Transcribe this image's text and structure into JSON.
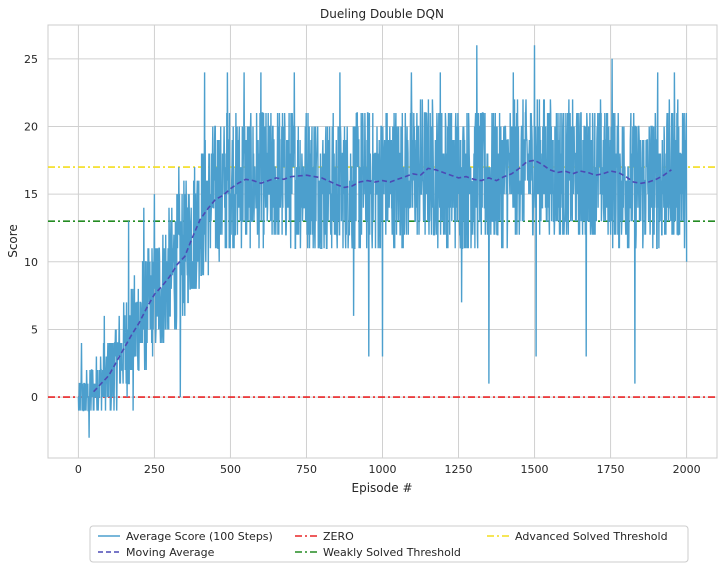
{
  "chart_data": {
    "type": "line",
    "title": "Dueling Double DQN",
    "xlabel": "Episode #",
    "ylabel": "Score",
    "xlim": [
      -100,
      2100
    ],
    "ylim": [
      -4.5,
      27.5
    ],
    "xticks": [
      0,
      250,
      500,
      750,
      1000,
      1250,
      1500,
      1750,
      2000
    ],
    "yticks": [
      0,
      5,
      10,
      15,
      20,
      25
    ],
    "grid": true,
    "legend_position": "bottom-center",
    "series": [
      {
        "name": "Average Score (100 Steps)",
        "style": "solid",
        "color": "#4c9fcd",
        "anchors": {
          "x": [
            0,
            25,
            50,
            75,
            100,
            125,
            150,
            175,
            200,
            250,
            300,
            350,
            400,
            450,
            500,
            550,
            600,
            650,
            700,
            750,
            800,
            850,
            900,
            950,
            1000,
            1050,
            1100,
            1150,
            1200,
            1250,
            1300,
            1350,
            1400,
            1450,
            1500,
            1550,
            1600,
            1650,
            1700,
            1750,
            1800,
            1850,
            1900,
            1950,
            2000
          ],
          "y": [
            0,
            0,
            0.5,
            1,
            1.5,
            2.5,
            3.5,
            4.5,
            5.5,
            7.5,
            9,
            11,
            13.5,
            15,
            16,
            16.2,
            16,
            16.2,
            16.4,
            16.3,
            15.8,
            15.5,
            15.8,
            16,
            16,
            16.2,
            16.5,
            16.8,
            16.5,
            16.3,
            16.2,
            16.1,
            16.3,
            17,
            17.3,
            16.9,
            16.6,
            16.6,
            16.8,
            16.5,
            16,
            15.8,
            16,
            16.5,
            16.5
          ]
        },
        "spread_anchors": {
          "x": [
            0,
            50,
            100,
            200,
            300,
            400,
            500,
            1000,
            1500,
            2000
          ],
          "y": [
            1.2,
            1.8,
            2.5,
            3.5,
            4.2,
            4.6,
            4.5,
            4.6,
            4.5,
            4.5
          ]
        },
        "spikes": [
          [
            10,
            4
          ],
          [
            35,
            -3
          ],
          [
            85,
            6
          ],
          [
            165,
            13
          ],
          [
            180,
            -1
          ],
          [
            215,
            14
          ],
          [
            250,
            15
          ],
          [
            330,
            17
          ],
          [
            335,
            0
          ],
          [
            415,
            24
          ],
          [
            490,
            24
          ],
          [
            545,
            24
          ],
          [
            600,
            24
          ],
          [
            710,
            24
          ],
          [
            860,
            24
          ],
          [
            905,
            6
          ],
          [
            955,
            3
          ],
          [
            1000,
            3
          ],
          [
            1095,
            24
          ],
          [
            1190,
            24
          ],
          [
            1260,
            7
          ],
          [
            1310,
            26
          ],
          [
            1350,
            1
          ],
          [
            1430,
            24
          ],
          [
            1500,
            26
          ],
          [
            1505,
            3
          ],
          [
            1670,
            3
          ],
          [
            1755,
            25
          ],
          [
            1830,
            1
          ],
          [
            1905,
            24
          ],
          [
            1960,
            24
          ],
          [
            2000,
            10
          ]
        ],
        "n_points": 2001
      },
      {
        "name": "Moving Average",
        "style": "dashed",
        "color": "#4b4ab5",
        "anchors": {
          "x": [
            50,
            75,
            100,
            125,
            150,
            175,
            200,
            225,
            250,
            275,
            300,
            325,
            350,
            375,
            400,
            425,
            450,
            475,
            500,
            525,
            550,
            575,
            600,
            625,
            650,
            675,
            700,
            750,
            800,
            850,
            875,
            900,
            925,
            950,
            975,
            1000,
            1025,
            1050,
            1075,
            1100,
            1125,
            1150,
            1175,
            1200,
            1225,
            1250,
            1275,
            1300,
            1325,
            1350,
            1375,
            1400,
            1425,
            1450,
            1475,
            1500,
            1525,
            1550,
            1575,
            1600,
            1625,
            1650,
            1675,
            1700,
            1725,
            1750,
            1775,
            1800,
            1825,
            1850,
            1875,
            1900,
            1925,
            1950
          ],
          "y": [
            0.4,
            1.0,
            1.6,
            2.6,
            3.6,
            4.6,
            5.5,
            6.6,
            7.6,
            8.2,
            8.9,
            9.8,
            10.4,
            11.8,
            13.1,
            13.9,
            14.6,
            14.9,
            15.4,
            15.8,
            16.1,
            16.0,
            15.8,
            16.0,
            16.2,
            16.1,
            16.3,
            16.4,
            16.2,
            15.7,
            15.5,
            15.6,
            15.9,
            16.0,
            15.9,
            16.0,
            15.9,
            16.1,
            16.3,
            16.5,
            16.4,
            16.9,
            16.8,
            16.6,
            16.4,
            16.2,
            16.3,
            16.1,
            16.0,
            16.2,
            16.0,
            16.3,
            16.5,
            16.9,
            17.4,
            17.5,
            17.2,
            16.8,
            16.6,
            16.7,
            16.5,
            16.7,
            16.6,
            16.4,
            16.5,
            16.7,
            16.6,
            16.3,
            15.9,
            15.8,
            15.9,
            16.1,
            16.4,
            16.8
          ]
        }
      },
      {
        "name": "ZERO",
        "style": "dashdot",
        "color": "#e82526",
        "y": 0
      },
      {
        "name": "Weakly Solved Threshold",
        "style": "dashdot",
        "color": "#238b22",
        "y": 13
      },
      {
        "name": "Advanced Solved Threshold",
        "style": "dashdot",
        "color": "#f4dd1f",
        "y": 17
      }
    ],
    "legend_columns": 3
  }
}
